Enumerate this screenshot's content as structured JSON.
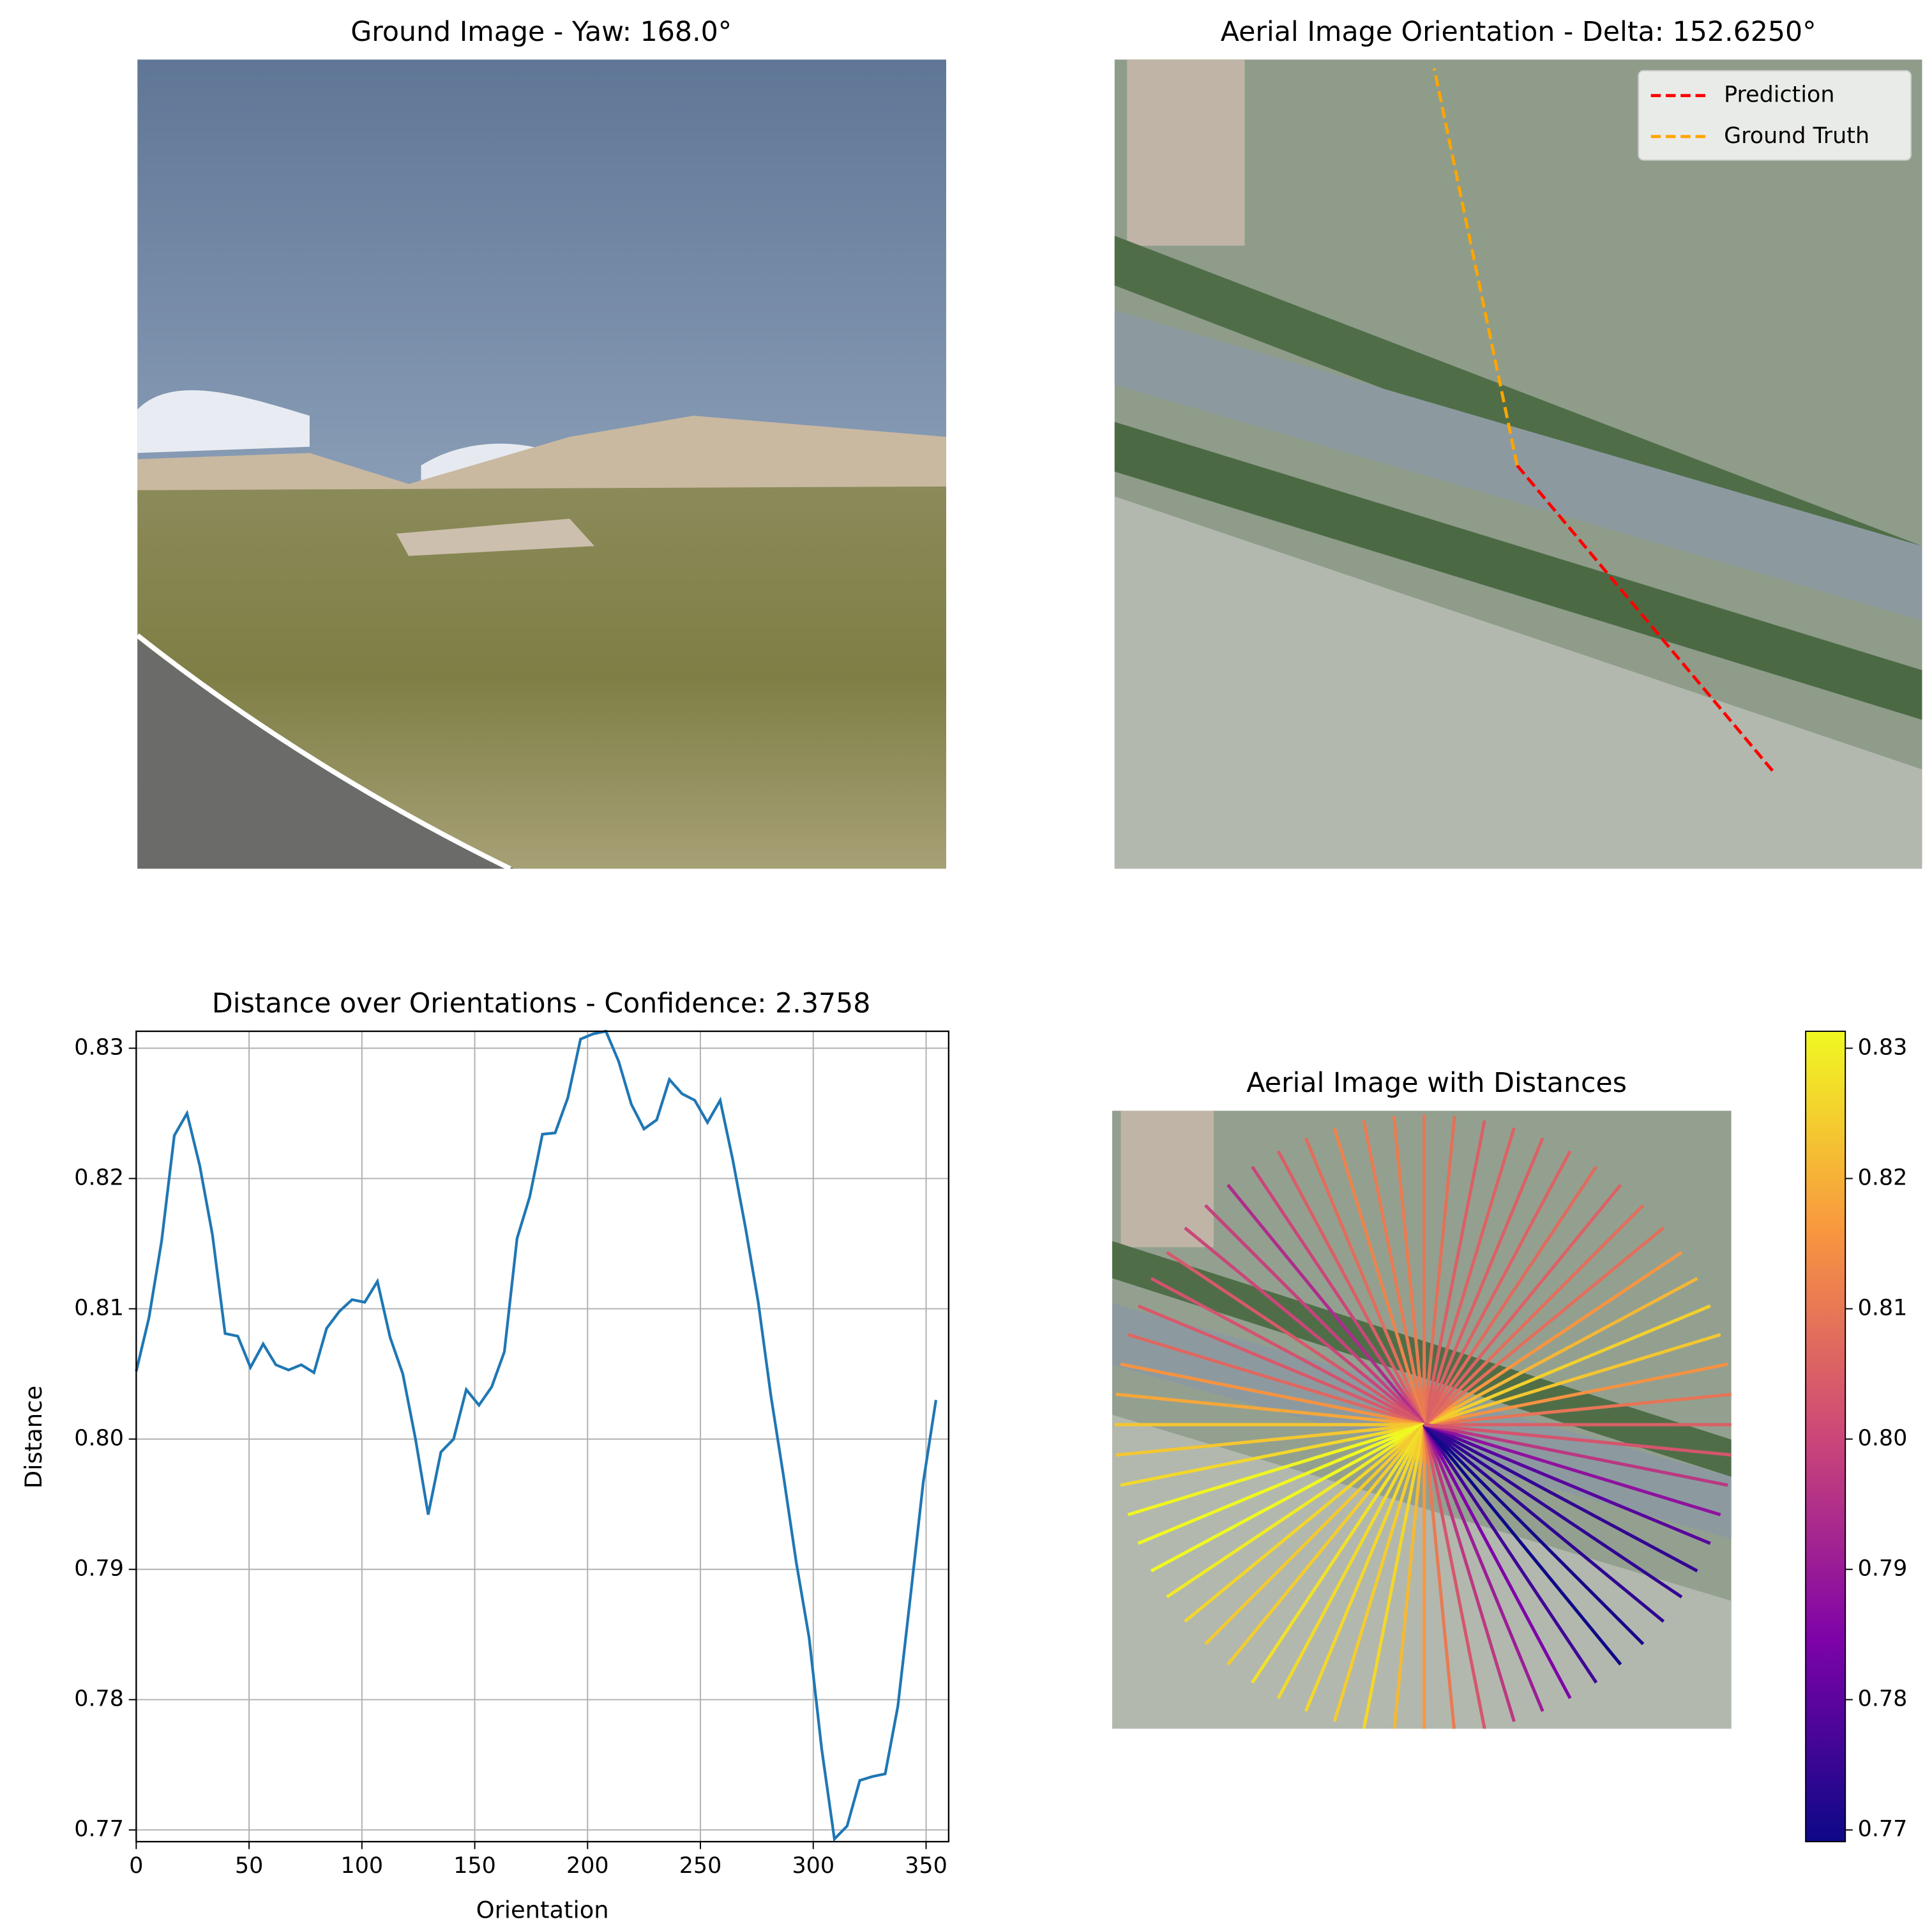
{
  "chart_data": [
    {
      "type": "image",
      "title": "Ground Image - Yaw: 168.0°"
    },
    {
      "type": "image",
      "title": "Aerial Image Orientation - Delta: 152.6250°",
      "legend": "upper right",
      "series": [
        {
          "name": "Prediction",
          "color": "#ff0000"
        },
        {
          "name": "Ground Truth",
          "color": "#ffa500"
        }
      ]
    },
    {
      "type": "line",
      "title": "Distance over Orientations - Confidence: 2.3758",
      "xlabel": "Orientation",
      "ylabel": "Distance",
      "color": "#1f77b4",
      "grid": true,
      "x": [
        0,
        5.625,
        11.25,
        16.875,
        22.5,
        28.125,
        33.75,
        39.375,
        45,
        50.625,
        56.25,
        61.875,
        67.5,
        73.125,
        78.75,
        84.375,
        90,
        95.625,
        101.25,
        106.875,
        112.5,
        118.125,
        123.75,
        129.375,
        135,
        140.625,
        146.25,
        151.875,
        157.5,
        163.125,
        168.75,
        174.375,
        180,
        185.625,
        191.25,
        196.875,
        202.5,
        208.125,
        213.75,
        219.375,
        225,
        230.625,
        236.25,
        241.875,
        247.5,
        253.125,
        258.75,
        264.375,
        270,
        275.625,
        281.25,
        286.875,
        292.5,
        298.125,
        303.75,
        309.375,
        315,
        320.625,
        326.25,
        331.875,
        337.5,
        343.125,
        348.75,
        354.375
      ],
      "values": [
        0.8052,
        0.8093,
        0.8152,
        0.8233,
        0.825,
        0.821,
        0.8157,
        0.8081,
        0.8079,
        0.8055,
        0.8073,
        0.8057,
        0.8053,
        0.8057,
        0.8051,
        0.8085,
        0.8098,
        0.8107,
        0.8105,
        0.8121,
        0.8078,
        0.805,
        0.8,
        0.7942,
        0.799,
        0.8,
        0.8038,
        0.8026,
        0.804,
        0.8067,
        0.8154,
        0.8186,
        0.8234,
        0.8235,
        0.8262,
        0.8307,
        0.8311,
        0.8313,
        0.829,
        0.8257,
        0.8238,
        0.8245,
        0.8276,
        0.8265,
        0.826,
        0.8243,
        0.826,
        0.8214,
        0.8162,
        0.8105,
        0.8033,
        0.7971,
        0.7905,
        0.7848,
        0.7762,
        0.7693,
        0.7703,
        0.7738,
        0.7741,
        0.7743,
        0.7795,
        0.788,
        0.7967,
        0.803
      ],
      "xlim": [
        0,
        360
      ],
      "xticks": [
        0,
        50,
        100,
        150,
        200,
        250,
        300,
        350
      ],
      "ylim": [
        0.7691,
        0.8313
      ],
      "yticks": [
        0.77,
        0.78,
        0.79,
        {
          "value": 0.8,
          "label": "0.80"
        },
        0.81,
        0.82,
        0.83
      ]
    },
    {
      "type": "radial",
      "title": "Aerial Image with Distances",
      "colormap": "plasma",
      "clim": [
        0.7691,
        0.8313
      ],
      "cticks": [
        0.77,
        0.78,
        0.79,
        {
          "value": 0.8,
          "label": "0.80"
        },
        0.81,
        0.82,
        0.83
      ]
    }
  ]
}
